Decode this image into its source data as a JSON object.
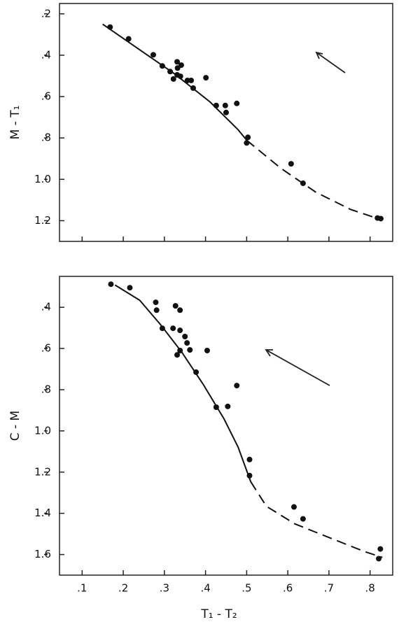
{
  "chart_data": [
    {
      "type": "scatter",
      "ylabel": "M - T₁",
      "xlim": [
        0.045,
        0.855
      ],
      "ylim": [
        1.3,
        0.15
      ],
      "xticks": [
        0.1,
        0.2,
        0.3,
        0.4,
        0.5,
        0.6,
        0.7,
        0.8
      ],
      "yticks": [
        {
          "value": 0.2,
          "label": ".2"
        },
        {
          "value": 0.4,
          "label": ".4"
        },
        {
          "value": 0.6,
          "label": ".6"
        },
        {
          "value": 0.8,
          "label": ".8"
        },
        {
          "value": 1.0,
          "label": "1.0"
        },
        {
          "value": 1.2,
          "label": "1.2"
        }
      ],
      "color": "#111",
      "x": [
        0.168,
        0.213,
        0.273,
        0.295,
        0.314,
        0.331,
        0.332,
        0.341,
        0.331,
        0.339,
        0.322,
        0.356,
        0.365,
        0.37,
        0.401,
        0.426,
        0.448,
        0.45,
        0.476,
        0.5,
        0.503,
        0.608,
        0.637,
        0.818,
        0.826
      ],
      "values": [
        0.264,
        0.321,
        0.398,
        0.452,
        0.479,
        0.432,
        0.462,
        0.448,
        0.495,
        0.502,
        0.515,
        0.522,
        0.522,
        0.559,
        0.509,
        0.643,
        0.643,
        0.677,
        0.633,
        0.824,
        0.797,
        0.925,
        1.019,
        1.187,
        1.19
      ],
      "curve_solid": {
        "x": [
          0.15,
          0.24,
          0.326,
          0.411,
          0.479,
          0.5
        ],
        "y": [
          0.25,
          0.374,
          0.492,
          0.626,
          0.76,
          0.811
        ]
      },
      "curve_dashed": {
        "x": [
          0.5,
          0.582,
          0.668,
          0.753,
          0.83
        ],
        "y": [
          0.811,
          0.945,
          1.062,
          1.146,
          1.197
        ]
      }
    },
    {
      "type": "scatter",
      "ylabel": "C - M",
      "xlabel": "T₁ - T₂",
      "xlim": [
        0.045,
        0.855
      ],
      "ylim": [
        1.7,
        0.25
      ],
      "xticks": [
        {
          "value": 0.1,
          "label": ".1"
        },
        {
          "value": 0.2,
          "label": ".2"
        },
        {
          "value": 0.3,
          "label": ".3"
        },
        {
          "value": 0.4,
          "label": ".4"
        },
        {
          "value": 0.5,
          "label": ".5"
        },
        {
          "value": 0.6,
          "label": ".6"
        },
        {
          "value": 0.7,
          "label": ".7"
        },
        {
          "value": 0.8,
          "label": ".8"
        }
      ],
      "yticks": [
        {
          "value": 0.4,
          "label": ".4"
        },
        {
          "value": 0.6,
          "label": ".6"
        },
        {
          "value": 0.8,
          "label": ".8"
        },
        {
          "value": 1.0,
          "label": "1.0"
        },
        {
          "value": 1.2,
          "label": "1.2"
        },
        {
          "value": 1.4,
          "label": "1.4"
        },
        {
          "value": 1.6,
          "label": "1.6"
        }
      ],
      "color": "#111",
      "x": [
        0.17,
        0.216,
        0.279,
        0.281,
        0.295,
        0.321,
        0.327,
        0.338,
        0.338,
        0.35,
        0.355,
        0.362,
        0.338,
        0.331,
        0.377,
        0.404,
        0.476,
        0.426,
        0.454,
        0.507,
        0.507,
        0.615,
        0.637,
        0.825,
        0.821
      ],
      "values": [
        0.288,
        0.305,
        0.376,
        0.414,
        0.502,
        0.502,
        0.393,
        0.414,
        0.512,
        0.542,
        0.573,
        0.607,
        0.61,
        0.631,
        0.715,
        0.61,
        0.78,
        0.885,
        0.881,
        1.139,
        1.217,
        1.369,
        1.427,
        1.573,
        1.62
      ],
      "curve_solid": {
        "x": [
          0.18,
          0.24,
          0.291,
          0.343,
          0.394,
          0.445,
          0.479,
          0.51
        ],
        "y": [
          0.292,
          0.366,
          0.485,
          0.62,
          0.773,
          0.942,
          1.078,
          1.247
        ]
      },
      "curve_dashed": {
        "x": [
          0.51,
          0.548,
          0.617,
          0.702,
          0.787,
          0.83
        ],
        "y": [
          1.247,
          1.366,
          1.451,
          1.519,
          1.586,
          1.614
        ]
      }
    }
  ]
}
